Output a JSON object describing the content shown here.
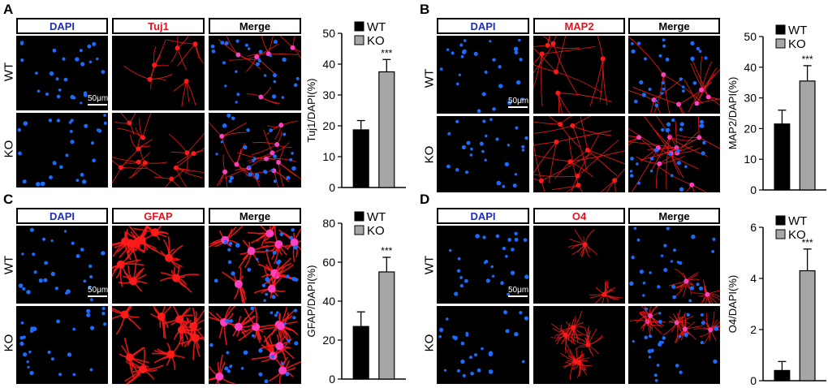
{
  "scale_label": "50μm",
  "row_labels": [
    "WT",
    "KO"
  ],
  "channels": [
    "DAPI",
    "",
    "Merge"
  ],
  "colors": {
    "blue_label": "#1f2fb4",
    "red_label": "#e0141e",
    "nuclei": "#1a6cff",
    "marker": "#ff1a1a",
    "ko_bar": "#a6a6a6",
    "wt_bar": "#000000"
  },
  "panels": [
    {
      "letter": "A",
      "marker": "Tuj1"
    },
    {
      "letter": "B",
      "marker": "MAP2"
    },
    {
      "letter": "C",
      "marker": "GFAP"
    },
    {
      "letter": "D",
      "marker": "O4"
    }
  ],
  "chart_data": [
    {
      "type": "bar",
      "categories": [
        "WT",
        "KO"
      ],
      "values": [
        18.7,
        37.5
      ],
      "errors": [
        3.0,
        4.0
      ],
      "ylabel": "Tuj1/DAPI(%)",
      "ylim": [
        0,
        50
      ],
      "yticks": [
        0,
        10,
        20,
        30,
        40,
        50
      ],
      "legend": [
        "WT",
        "KO"
      ],
      "annotation": "***"
    },
    {
      "type": "bar",
      "categories": [
        "WT",
        "KO"
      ],
      "values": [
        21.5,
        35.5
      ],
      "errors": [
        4.5,
        5.0
      ],
      "ylabel": "MAP2/DAPI(%)",
      "ylim": [
        0,
        50
      ],
      "yticks": [
        0,
        10,
        20,
        30,
        40,
        50
      ],
      "legend": [
        "WT",
        "KO"
      ],
      "annotation": "***"
    },
    {
      "type": "bar",
      "categories": [
        "WT",
        "KO"
      ],
      "values": [
        27,
        55
      ],
      "errors": [
        7.5,
        7.5
      ],
      "ylabel": "GFAP/DAPI(%)",
      "ylim": [
        0,
        80
      ],
      "yticks": [
        0,
        20,
        40,
        60,
        80
      ],
      "legend": [
        "WT",
        "KO"
      ],
      "annotation": "***"
    },
    {
      "type": "bar",
      "categories": [
        "WT",
        "KO"
      ],
      "values": [
        0.4,
        4.3
      ],
      "errors": [
        0.35,
        0.85
      ],
      "ylabel": "O4/DAPI(%)",
      "ylim": [
        0,
        6
      ],
      "yticks": [
        0,
        2,
        4,
        6
      ],
      "legend": [
        "WT",
        "KO"
      ],
      "annotation": "***"
    }
  ]
}
